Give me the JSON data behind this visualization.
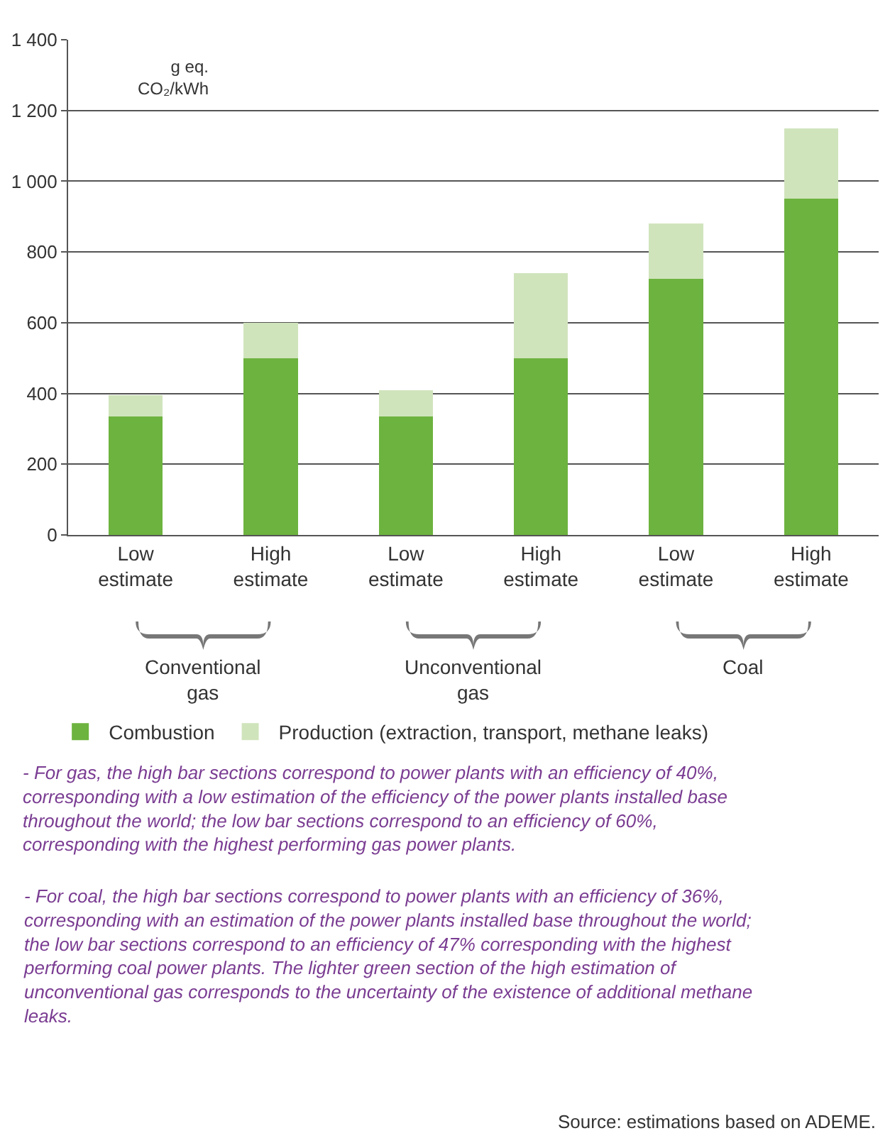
{
  "chart_data": {
    "type": "bar",
    "stacked": true,
    "ylabel": "g eq. CO₂/kWh",
    "categories": [
      "Low estimate",
      "High estimate",
      "Low estimate",
      "High estimate",
      "Low estimate",
      "High estimate"
    ],
    "series": [
      {
        "name": "Combustion",
        "color": "#6db33f",
        "values": [
          335,
          500,
          335,
          500,
          725,
          950
        ]
      },
      {
        "name": "Production (extraction, transport, methane leaks)",
        "color": "#d0e4bc",
        "values": [
          60,
          100,
          75,
          240,
          155,
          200
        ]
      }
    ],
    "ylim": [
      0,
      1400
    ],
    "yticks": [
      0,
      {
        "value": 200,
        "label": "200"
      },
      {
        "value": 400,
        "label": "400"
      },
      {
        "value": 600,
        "label": "600"
      },
      {
        "value": 800,
        "label": "800"
      },
      {
        "value": 1000,
        "label": "1 000"
      },
      {
        "value": 1200,
        "label": "1 200"
      },
      {
        "value": 1400,
        "label": "1 400"
      }
    ],
    "grid": "y",
    "legend": "bottom",
    "annotations": [
      "Conventional gas",
      "Unconventional gas",
      "Coal",
      "- For gas, the high bar sections correspond to power plants with an efficiency of 40%, corresponding with a low estimation of the efficiency of the power plants installed base throughout the world; the low bar sections correspond to an efficiency of 60%, corresponding with the highest performing gas power plants.",
      "- For coal, the high bar sections correspond to power plants with an efficiency of 36%, corresponding with an estimation of the power plants installed base throughout the world; the low bar sections correspond to an efficiency of 47% corresponding with the highest performing coal power plants. The lighter green section of the high estimation of unconventional gas corresponds to the uncertainty of the existence of additional methane leaks.",
      "Source: estimations based on ADEME."
    ]
  }
}
